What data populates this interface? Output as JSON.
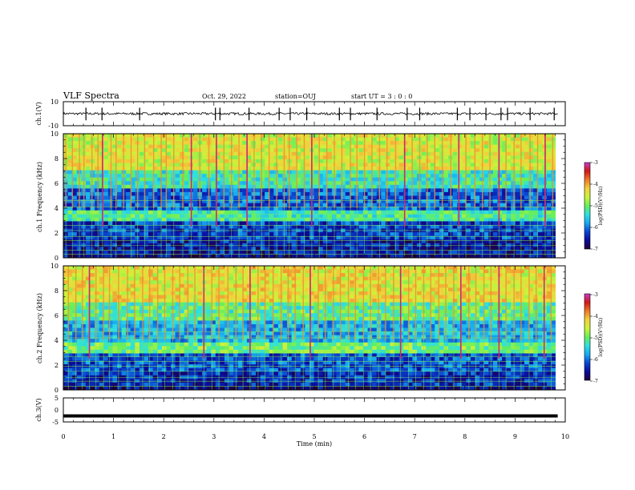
{
  "header": {
    "title": "VLF Spectra",
    "date": "Oct. 29, 2022",
    "station": "station=OUJ",
    "start": "start UT = 3 : 0 : 0"
  },
  "colors": {
    "trace": "#000000",
    "background": "#ffffff",
    "colormap": [
      "#22003a",
      "#0a0a9a",
      "#0a46d2",
      "#18aaf0",
      "#2ee0e0",
      "#66ef5a",
      "#ccf23a",
      "#f0d23c",
      "#f07a2a",
      "#d01818",
      "#c83cc8"
    ]
  },
  "chart_data": [
    {
      "type": "line",
      "panel": "ch1-waveform",
      "ylabel": "ch.1(V)",
      "ylim": [
        -10,
        10
      ],
      "ytick_labels": [
        "10",
        "-10"
      ],
      "x": [
        0,
        10
      ],
      "baseline_v": 0,
      "noise_amplitude_v": 1,
      "spike_times_min": [
        0.45,
        0.77,
        1.52,
        3.03,
        3.12,
        3.7,
        4.3,
        4.52,
        4.85,
        5.5,
        5.72,
        6.25,
        6.85,
        7.1,
        7.85,
        8.1,
        8.42,
        8.72,
        8.85,
        9.3,
        9.78
      ]
    },
    {
      "type": "heatmap",
      "panel": "ch1-spectrogram",
      "ylabel": "ch.1 Frequency (kHz)",
      "ylim": [
        0,
        10
      ],
      "ytick_labels": [
        "0",
        "2",
        "4",
        "6",
        "8",
        "10"
      ],
      "xlim": [
        0,
        9.85
      ],
      "colorbar": {
        "label": "log(PSD)(V²/Hz)",
        "range": [
          -7,
          -3
        ],
        "tick_labels": [
          "-3",
          "-4",
          "-5",
          "-6",
          "-7"
        ]
      },
      "band_level_log_psd": [
        {
          "freq_khz": [
            0,
            0.3
          ],
          "level": -6.7
        },
        {
          "freq_khz": [
            0.3,
            1.5
          ],
          "level": -6.5
        },
        {
          "freq_khz": [
            1.5,
            3.0
          ],
          "level": -6.3
        },
        {
          "freq_khz": [
            3.0,
            3.7
          ],
          "level": -5.2
        },
        {
          "freq_khz": [
            3.7,
            5.5
          ],
          "level": -6.1
        },
        {
          "freq_khz": [
            5.5,
            7.0
          ],
          "level": -5.3
        },
        {
          "freq_khz": [
            7.0,
            10.0
          ],
          "level": -4.5
        }
      ],
      "hum_lines_khz": [
        0.3,
        0.6,
        1.0,
        1.4,
        1.7,
        2.2,
        2.6,
        3.2,
        3.5,
        4.1,
        4.6
      ],
      "sferic_times_min": [
        0.05,
        0.18,
        0.32,
        0.41,
        0.57,
        0.69,
        0.78,
        0.95,
        1.05,
        1.2,
        1.35,
        1.48,
        1.62,
        1.8,
        1.95,
        2.05,
        2.2,
        2.38,
        2.55,
        2.72,
        2.9,
        3.05,
        3.2,
        3.35,
        3.5,
        3.66,
        3.8,
        3.95,
        4.1,
        4.25,
        4.4,
        4.5,
        4.65,
        4.8,
        4.95,
        5.1,
        5.25,
        5.4,
        5.55,
        5.72,
        5.85,
        6.0,
        6.15,
        6.3,
        6.45,
        6.62,
        6.8,
        6.95,
        7.1,
        7.25,
        7.4,
        7.55,
        7.72,
        7.88,
        8.02,
        8.2,
        8.35,
        8.5,
        8.68,
        8.82,
        8.98,
        9.12,
        9.3,
        9.45,
        9.6,
        9.75
      ],
      "strong_sferic_times_min": [
        0.78,
        2.55,
        3.05,
        3.66,
        4.95,
        6.8,
        7.88,
        8.68,
        9.6
      ]
    },
    {
      "type": "heatmap",
      "panel": "ch2-spectrogram",
      "ylabel": "ch.2 Frequency (kHz)",
      "ylim": [
        0,
        10
      ],
      "ytick_labels": [
        "0",
        "2",
        "4",
        "6",
        "8",
        "10"
      ],
      "xlim": [
        0,
        9.85
      ],
      "colorbar": {
        "label": "log(PSD)(V²/Hz)",
        "range": [
          -7,
          -3
        ],
        "tick_labels": [
          "-3",
          "-4",
          "-5",
          "-6",
          "-7"
        ]
      },
      "band_level_log_psd": [
        {
          "freq_khz": [
            0,
            0.3
          ],
          "level": -6.7
        },
        {
          "freq_khz": [
            0.3,
            1.5
          ],
          "level": -6.4
        },
        {
          "freq_khz": [
            1.5,
            2.8
          ],
          "level": -6.2
        },
        {
          "freq_khz": [
            2.8,
            3.8
          ],
          "level": -5.0
        },
        {
          "freq_khz": [
            3.8,
            5.5
          ],
          "level": -5.7
        },
        {
          "freq_khz": [
            5.5,
            7.0
          ],
          "level": -5.1
        },
        {
          "freq_khz": [
            7.0,
            10.0
          ],
          "level": -4.4
        }
      ],
      "hum_lines_khz": [
        0.3,
        0.7,
        1.0,
        1.5,
        1.9,
        2.3,
        2.7,
        3.1,
        4.2,
        4.7
      ],
      "sferic_times_min": [
        0.1,
        0.25,
        0.38,
        0.52,
        0.65,
        0.8,
        0.92,
        1.1,
        1.28,
        1.42,
        1.58,
        1.72,
        1.88,
        2.02,
        2.18,
        2.32,
        2.48,
        2.62,
        2.8,
        2.96,
        3.1,
        3.28,
        3.44,
        3.58,
        3.72,
        3.88,
        4.02,
        4.18,
        4.34,
        4.48,
        4.62,
        4.78,
        4.92,
        5.08,
        5.22,
        5.38,
        5.52,
        5.68,
        5.82,
        5.98,
        6.12,
        6.28,
        6.42,
        6.58,
        6.72,
        6.88,
        7.02,
        7.18,
        7.32,
        7.48,
        7.62,
        7.78,
        7.92,
        8.08,
        8.22,
        8.38,
        8.52,
        8.68,
        8.82,
        8.98,
        9.12,
        9.28,
        9.42,
        9.58,
        9.72
      ],
      "strong_sferic_times_min": [
        0.52,
        2.8,
        3.72,
        4.92,
        6.72,
        7.92,
        8.68,
        9.58
      ]
    },
    {
      "type": "line",
      "panel": "ch3-waveform",
      "ylabel": "ch.3(V)",
      "ylim": [
        -5,
        5
      ],
      "ytick_labels": [
        "5",
        "0",
        "-5"
      ],
      "xlabel": "Time (min)",
      "xlim": [
        0,
        10
      ],
      "xtick_labels": [
        "0",
        "1",
        "2",
        "3",
        "4",
        "5",
        "6",
        "7",
        "8",
        "9",
        "10"
      ],
      "x": [
        0,
        9.85
      ],
      "y": [
        -2.5,
        -2.5
      ]
    }
  ]
}
